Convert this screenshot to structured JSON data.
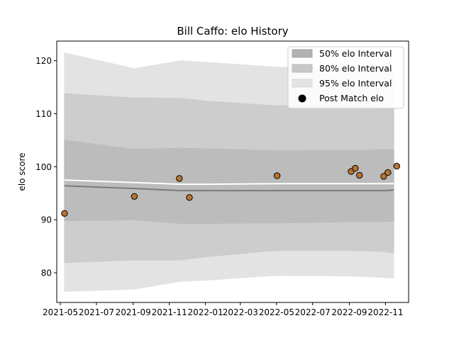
{
  "chart_data": {
    "type": "line",
    "title": "Bill Caffo: elo History",
    "xlabel": "",
    "ylabel": "elo score",
    "xlim": [
      "2021-04-25",
      "2022-12-10"
    ],
    "ylim": [
      74.4,
      123.7
    ],
    "x_ticks": [
      "2021-05-01",
      "2021-07-01",
      "2021-09-01",
      "2021-11-01",
      "2022-01-01",
      "2022-03-01",
      "2022-05-01",
      "2022-07-01",
      "2022-09-01",
      "2022-11-01"
    ],
    "x_tick_labels": [
      "2021-05",
      "2021-07",
      "2021-09",
      "2021-11",
      "2022-01",
      "2022-03",
      "2022-05",
      "2022-07",
      "2022-09",
      "2022-11"
    ],
    "y_ticks": [
      80,
      90,
      100,
      110,
      120
    ],
    "grid": false,
    "legend_position": "top-right",
    "legend": [
      {
        "label": "50% elo Interval",
        "kind": "band"
      },
      {
        "label": "80% elo Interval",
        "kind": "band"
      },
      {
        "label": "95% elo Interval",
        "kind": "band"
      },
      {
        "label": "Post Match elo",
        "kind": "marker"
      }
    ],
    "bands": [
      {
        "name": "95% elo Interval",
        "color": "#e3e3e3",
        "x": [
          "2021-05-08",
          "2021-09-03",
          "2021-11-20",
          "2022-01-01",
          "2022-05-01",
          "2022-09-01",
          "2022-11-01",
          "2022-11-15"
        ],
        "lower": [
          76.5,
          76.9,
          78.4,
          78.6,
          79.5,
          79.4,
          79.1,
          79.0
        ],
        "upper": [
          121.5,
          118.5,
          120.0,
          119.7,
          118.8,
          118.6,
          118.4,
          118.4
        ]
      },
      {
        "name": "80% elo Interval",
        "color": "#cdcdcd",
        "x": [
          "2021-05-08",
          "2021-09-03",
          "2021-11-20",
          "2022-01-01",
          "2022-05-01",
          "2022-09-01",
          "2022-11-01",
          "2022-11-15"
        ],
        "lower": [
          81.9,
          82.4,
          82.4,
          83.0,
          84.2,
          84.2,
          84.0,
          83.7
        ],
        "upper": [
          113.8,
          113.0,
          112.9,
          112.4,
          111.5,
          111.6,
          111.3,
          111.2
        ]
      },
      {
        "name": "50% elo Interval",
        "color": "#bcbcbc",
        "x": [
          "2021-05-08",
          "2021-09-03",
          "2021-11-20",
          "2022-01-01",
          "2022-05-01",
          "2022-09-01",
          "2022-11-01",
          "2022-11-15"
        ],
        "lower": [
          89.8,
          90.0,
          89.3,
          89.3,
          89.4,
          89.6,
          89.7,
          89.7
        ],
        "upper": [
          105.0,
          103.3,
          103.5,
          103.4,
          103.0,
          103.1,
          103.2,
          103.2
        ]
      }
    ],
    "lines": [
      {
        "name": "mean",
        "color": "#ffffff",
        "x": [
          "2021-05-08",
          "2021-09-03",
          "2021-11-20",
          "2022-01-01",
          "2022-05-01",
          "2022-09-01",
          "2022-11-01",
          "2022-11-15"
        ],
        "y": [
          97.5,
          97.0,
          96.7,
          96.7,
          96.8,
          96.8,
          96.8,
          96.8
        ]
      },
      {
        "name": "median",
        "color": "#7a7a7a",
        "x": [
          "2021-05-08",
          "2021-09-03",
          "2021-11-20",
          "2022-01-01",
          "2022-05-01",
          "2022-09-01",
          "2022-11-01",
          "2022-11-15"
        ],
        "y": [
          96.4,
          95.9,
          95.5,
          95.5,
          95.5,
          95.5,
          95.5,
          95.6
        ]
      }
    ],
    "series": [
      {
        "name": "Post Match elo",
        "color": "#b87333",
        "x": [
          "2021-05-08",
          "2021-09-03",
          "2021-11-18",
          "2021-12-05",
          "2022-05-02",
          "2022-09-04",
          "2022-09-11",
          "2022-09-18",
          "2022-10-29",
          "2022-11-05",
          "2022-11-20"
        ],
        "y": [
          91.2,
          94.4,
          97.8,
          94.2,
          98.3,
          99.1,
          99.7,
          98.4,
          98.2,
          98.9,
          100.1
        ]
      }
    ]
  }
}
